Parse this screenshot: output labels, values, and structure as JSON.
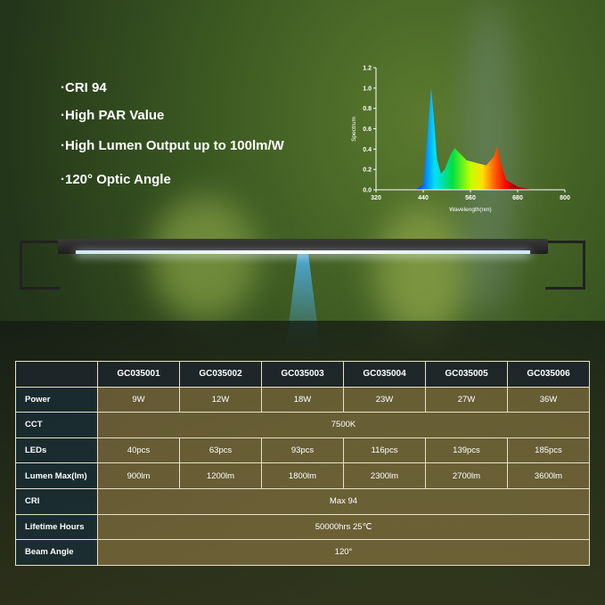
{
  "bullets": [
    "·CRI 94",
    "·High PAR Value",
    "·High Lumen Output up to 100lm/W",
    "·120° Optic Angle"
  ],
  "chart_data": {
    "type": "area",
    "xlabel": "Wavelength(nm)",
    "ylabel": "Spectrum",
    "xlim": [
      320,
      800
    ],
    "ylim": [
      0,
      1.2
    ],
    "xticks": [
      "320",
      "440",
      "560",
      "680",
      "800"
    ],
    "yticks": [
      "0.0",
      "0.2",
      "0.4",
      "0.6",
      "0.8",
      "1.0",
      "1.2"
    ],
    "x": [
      420,
      440,
      450,
      460,
      465,
      475,
      485,
      495,
      510,
      520,
      535,
      550,
      580,
      600,
      620,
      628,
      635,
      650,
      680,
      720
    ],
    "y": [
      0,
      0.05,
      0.5,
      1.0,
      0.8,
      0.3,
      0.16,
      0.2,
      0.35,
      0.41,
      0.35,
      0.29,
      0.26,
      0.24,
      0.33,
      0.43,
      0.3,
      0.1,
      0.03,
      0
    ],
    "fill": "visible-spectrum gradient"
  },
  "table": {
    "models": [
      "GC035001",
      "GC035002",
      "GC035003",
      "GC035004",
      "GC035005",
      "GC035006"
    ],
    "rows": [
      {
        "label": "Power",
        "values": [
          "9W",
          "12W",
          "18W",
          "23W",
          "27W",
          "36W"
        ]
      },
      {
        "label": "CCT",
        "span": "7500K"
      },
      {
        "label": "LEDs",
        "values": [
          "40pcs",
          "63pcs",
          "93pcs",
          "116pcs",
          "139pcs",
          "185pcs"
        ]
      },
      {
        "label": "Lumen Max(lm)",
        "values": [
          "900lm",
          "1200lm",
          "1800lm",
          "2300lm",
          "2700lm",
          "3600lm"
        ]
      },
      {
        "label": "CRI",
        "span": "Max 94"
      },
      {
        "label": "Lifetime Hours",
        "span": "50000hrs 25℃"
      },
      {
        "label": "Beam Angle",
        "span": "120°"
      }
    ]
  }
}
